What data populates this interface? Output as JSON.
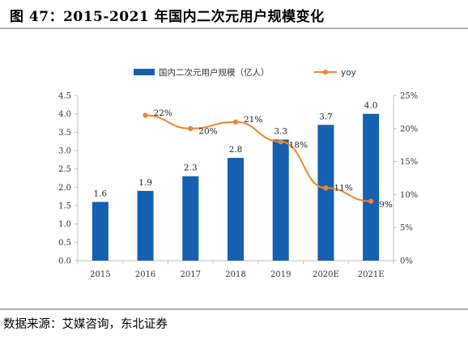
{
  "header": {
    "title": "图 47：2015-2021 年国内二次元用户规模变化"
  },
  "source": {
    "text": "数据来源：艾媒咨询，东北证券"
  },
  "colors": {
    "bar": "#1560b0",
    "line": "#f0862f",
    "axis": "#bfbfbf"
  },
  "chart_data": {
    "type": "bar",
    "categories": [
      "2015",
      "2016",
      "2017",
      "2018",
      "2019",
      "2020E",
      "2021E"
    ],
    "series": [
      {
        "name": "国内二次元用户规模（亿人）",
        "type": "bar",
        "axis": "left",
        "values": [
          1.6,
          1.9,
          2.3,
          2.8,
          3.3,
          3.7,
          4.0
        ],
        "labels": [
          "1.6",
          "1.9",
          "2.3",
          "2.8",
          "3.3",
          "3.7",
          "4.0"
        ]
      },
      {
        "name": "yoy",
        "type": "line",
        "axis": "right",
        "values": [
          null,
          22,
          20,
          21,
          18,
          11,
          9
        ],
        "labels": [
          "",
          "22%",
          "20%",
          "21%",
          "18%",
          "11%",
          "9%"
        ]
      }
    ],
    "y_left": {
      "ylim": [
        0,
        4.5
      ],
      "ticks": [
        "0.0",
        "0.5",
        "1.0",
        "1.5",
        "2.0",
        "2.5",
        "3.0",
        "3.5",
        "4.0",
        "4.5"
      ]
    },
    "y_right": {
      "ylim": [
        0,
        25
      ],
      "ticks": [
        "0%",
        "5%",
        "10%",
        "15%",
        "20%",
        "25%"
      ]
    },
    "grid": false,
    "legend": "top"
  }
}
